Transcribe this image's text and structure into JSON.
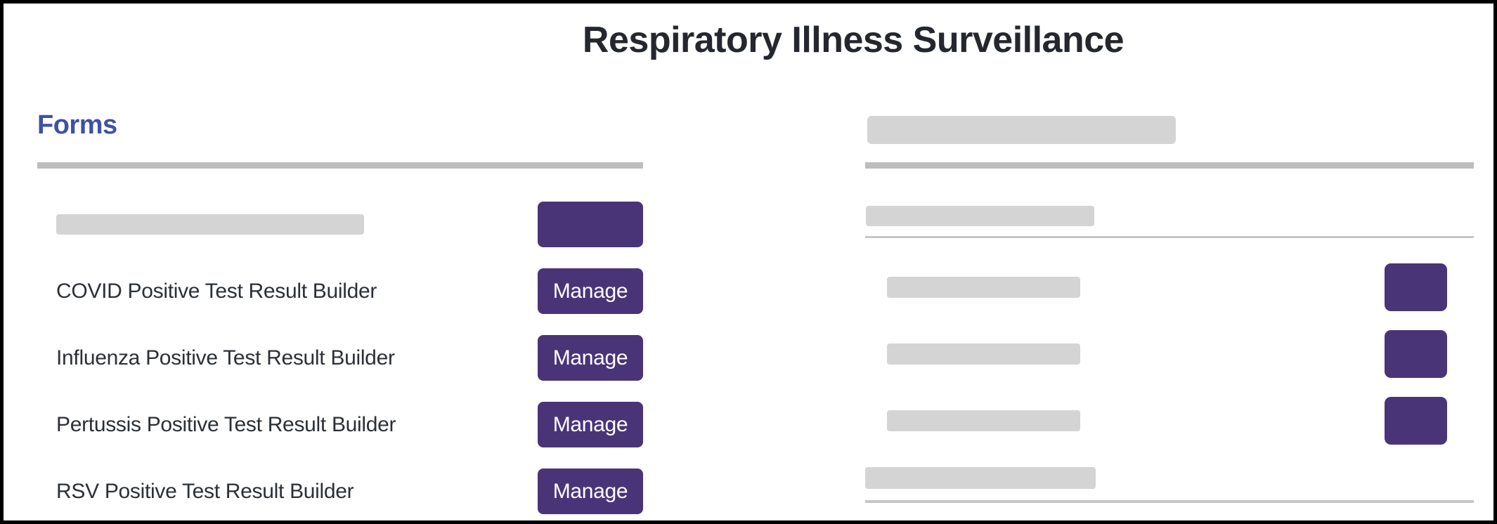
{
  "app": {
    "title": "Respiratory Illness Surveillance"
  },
  "colors": {
    "accent_purple": "#4a3478",
    "heading_blue": "#3f51a5",
    "skeleton_gray": "#d4d4d4",
    "rule_gray": "#bdbdbd",
    "thin_rule_gray": "#c6c6c6",
    "title_text": "#24272e",
    "body_text": "#2b3036",
    "button_text": "#ffffff",
    "page_bg": "#ffffff",
    "page_border": "#000000"
  },
  "forms_panel": {
    "heading": "Forms",
    "loading_row": {
      "action": ""
    },
    "rows": [
      {
        "label": "COVID Positive Test Result Builder",
        "action": "Manage"
      },
      {
        "label": "Influenza Positive Test Result Builder",
        "action": "Manage"
      },
      {
        "label": "Pertussis Positive Test Result Builder",
        "action": "Manage"
      },
      {
        "label": "RSV Positive Test Result Builder",
        "action": "Manage"
      }
    ]
  },
  "right_panel": {
    "state": "loading",
    "skeleton_rows": 3
  }
}
